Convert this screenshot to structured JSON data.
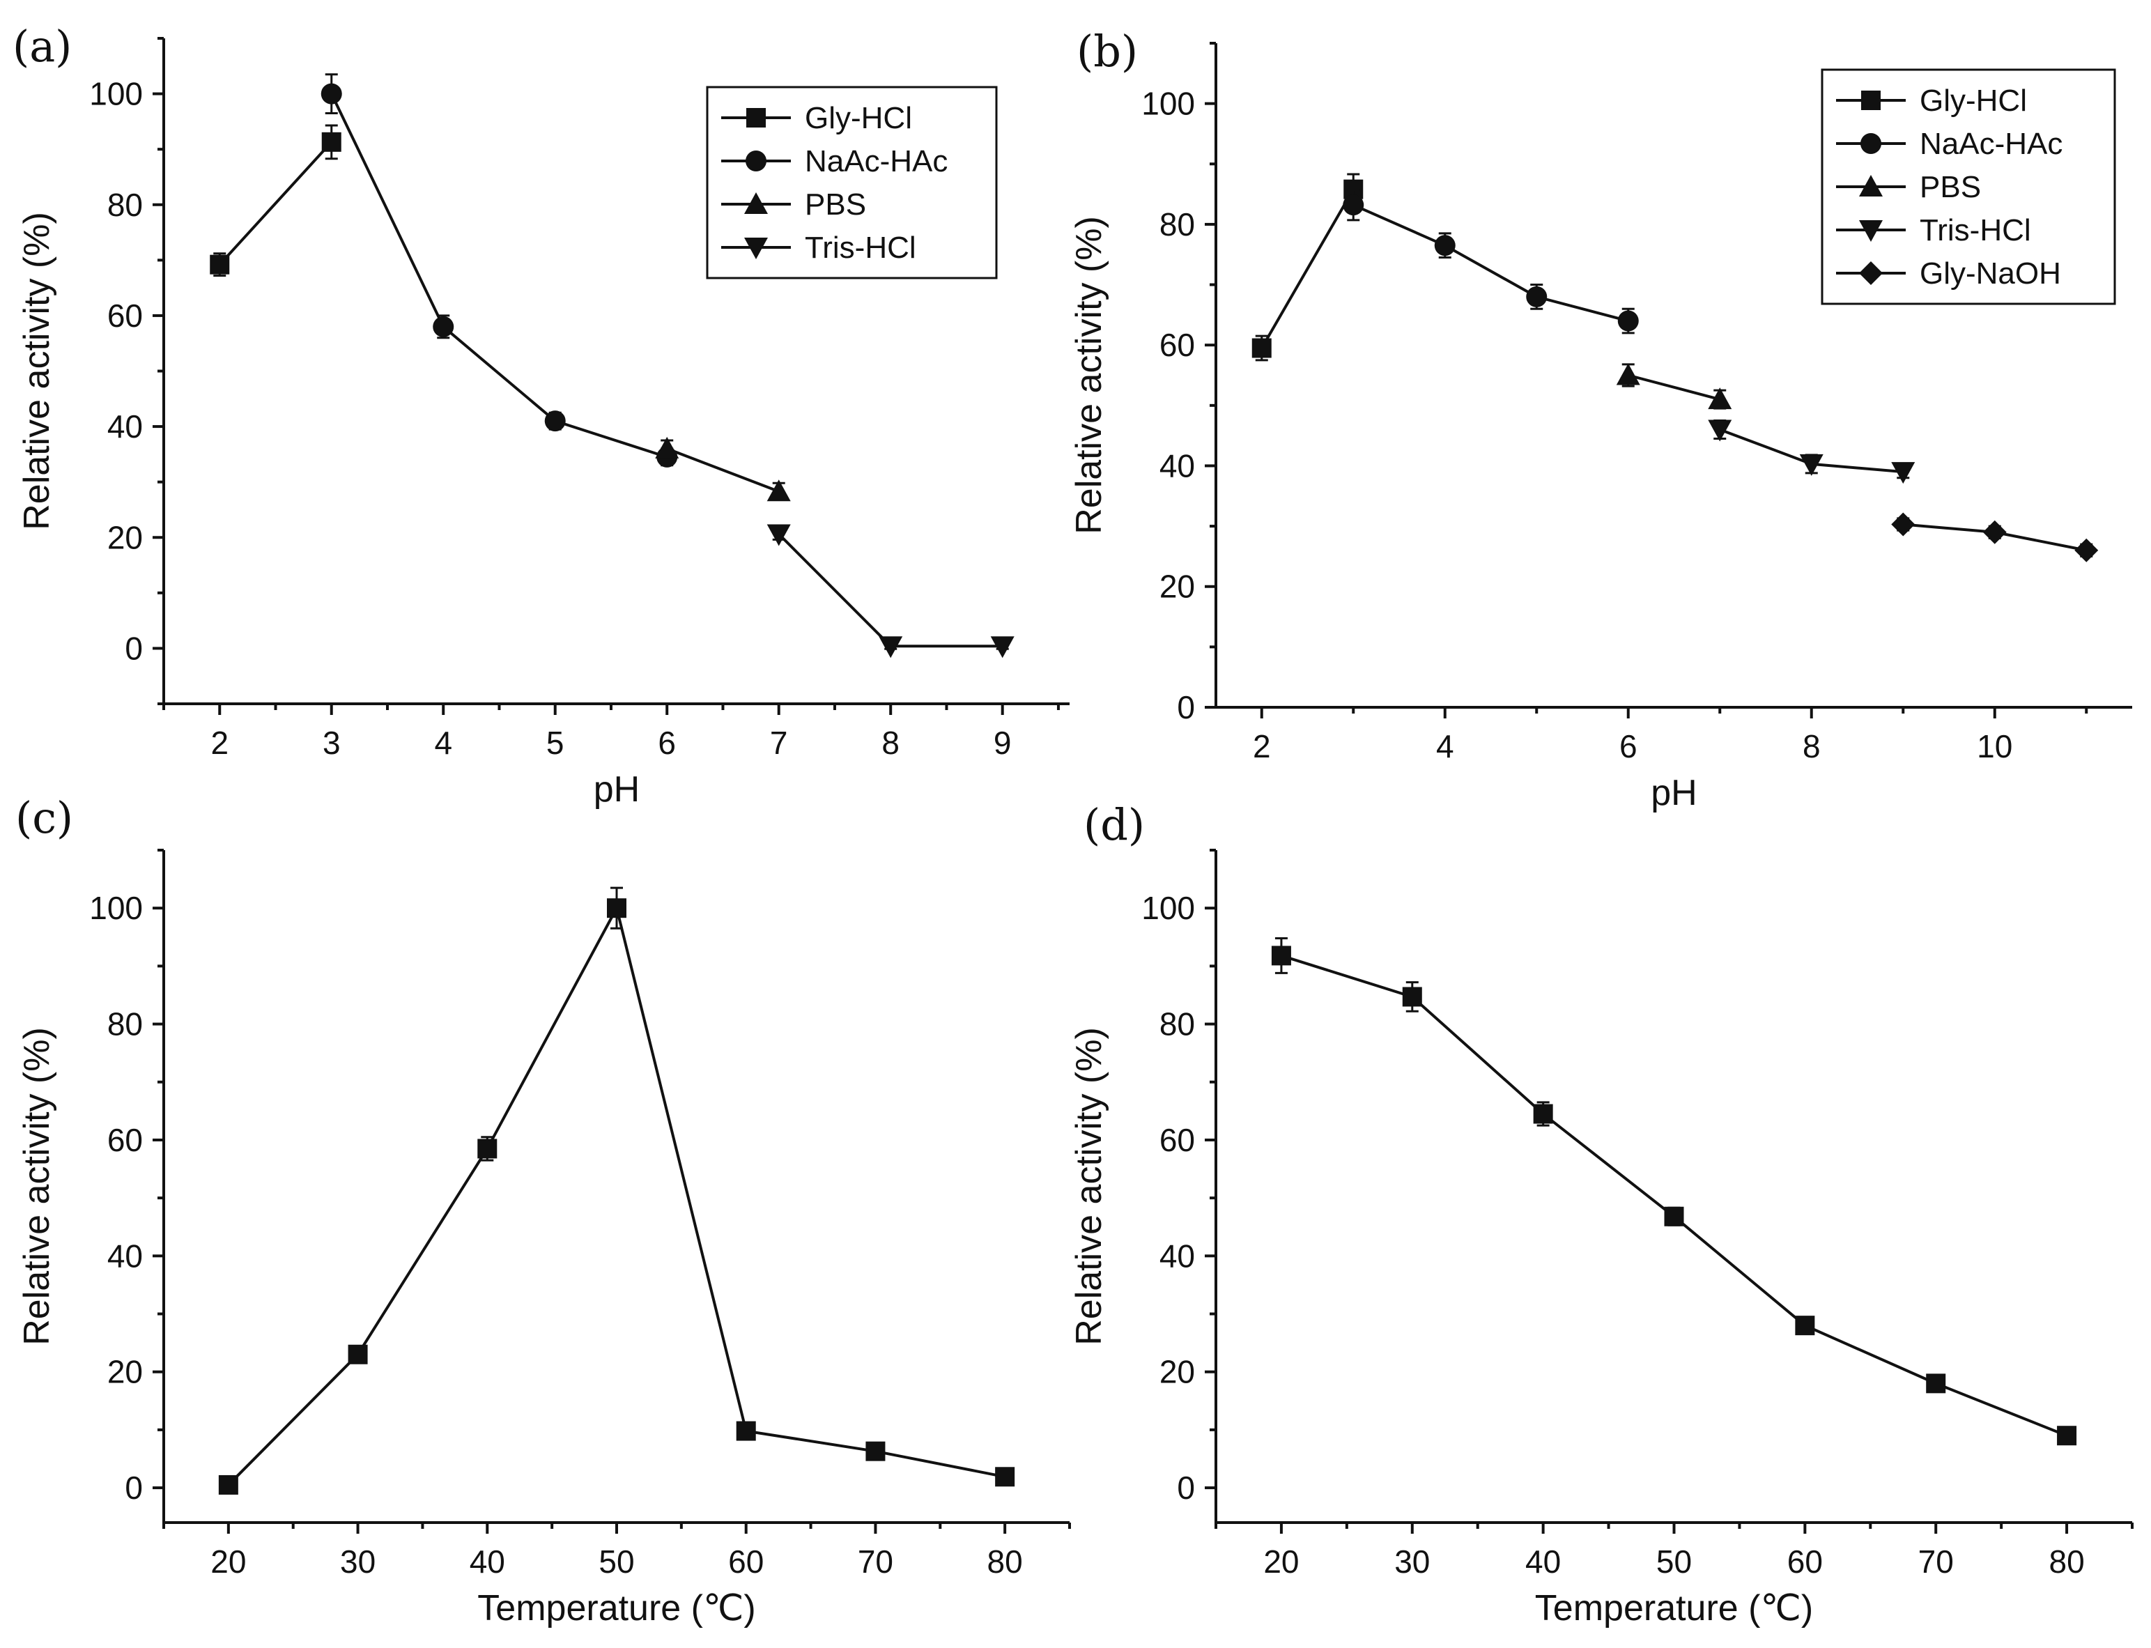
{
  "chart_data": [
    {
      "panel": "(a)",
      "type": "line",
      "xlabel": "pH",
      "ylabel": "Relative activity (%)",
      "xlim": [
        1.5,
        9.6
      ],
      "ylim": [
        -10,
        110
      ],
      "xticks": [
        2,
        3,
        4,
        5,
        6,
        7,
        8,
        9
      ],
      "yticks": [
        0,
        20,
        40,
        60,
        80,
        100
      ],
      "legend_position": "top-right",
      "series": [
        {
          "name": "Gly-HCl",
          "marker": "square",
          "x": [
            2,
            3
          ],
          "values": [
            69.2,
            91.3
          ],
          "err": [
            2,
            3
          ]
        },
        {
          "name": "NaAc-HAc",
          "marker": "circle",
          "x": [
            3,
            4,
            5,
            6
          ],
          "values": [
            100,
            58,
            41,
            34.5
          ],
          "err": [
            3.5,
            2,
            1.5,
            1.5
          ]
        },
        {
          "name": "PBS",
          "marker": "triangle-up",
          "x": [
            6,
            7
          ],
          "values": [
            36,
            28.3
          ],
          "err": [
            1.5,
            1.5
          ]
        },
        {
          "name": "Tris-HCl",
          "marker": "triangle-down",
          "x": [
            7,
            8,
            9
          ],
          "values": [
            20.6,
            0.4,
            0.4
          ],
          "err": [
            1,
            0.5,
            0.5
          ]
        }
      ]
    },
    {
      "panel": "(b)",
      "type": "line",
      "xlabel": "pH",
      "ylabel": "Relative activity (%)",
      "xlim": [
        1.5,
        11.5
      ],
      "ylim": [
        0,
        110
      ],
      "xticks": [
        2,
        4,
        6,
        8,
        10
      ],
      "yticks": [
        0,
        20,
        40,
        60,
        80,
        100
      ],
      "legend_position": "top-right",
      "series": [
        {
          "name": "Gly-HCl",
          "marker": "square",
          "x": [
            2,
            3
          ],
          "values": [
            59.5,
            85.8
          ],
          "err": [
            2,
            2.5
          ]
        },
        {
          "name": "NaAc-HAc",
          "marker": "circle",
          "x": [
            3,
            4,
            5,
            6
          ],
          "values": [
            83.2,
            76.5,
            68,
            64
          ],
          "err": [
            2.5,
            2,
            2,
            2
          ]
        },
        {
          "name": "PBS",
          "marker": "triangle-up",
          "x": [
            6,
            7
          ],
          "values": [
            55,
            51
          ],
          "err": [
            1.8,
            1.5
          ]
        },
        {
          "name": "Tris-HCl",
          "marker": "triangle-down",
          "x": [
            7,
            8,
            9
          ],
          "values": [
            46,
            40.3,
            39
          ],
          "err": [
            1.5,
            1.5,
            1
          ]
        },
        {
          "name": "Gly-NaOH",
          "marker": "diamond",
          "x": [
            9,
            10,
            11
          ],
          "values": [
            30.3,
            29,
            26
          ],
          "err": [
            1,
            1,
            1
          ]
        }
      ]
    },
    {
      "panel": "(c)",
      "type": "line",
      "xlabel": "Temperature (℃)",
      "ylabel": "Relative activity (%)",
      "xlim": [
        15,
        85
      ],
      "ylim": [
        -6,
        110
      ],
      "xticks": [
        20,
        30,
        40,
        50,
        60,
        70,
        80
      ],
      "yticks": [
        0,
        20,
        40,
        60,
        80,
        100
      ],
      "series": [
        {
          "name": "",
          "marker": "square",
          "x": [
            20,
            30,
            40,
            50,
            60,
            70,
            80
          ],
          "values": [
            0.5,
            23,
            58.5,
            100,
            9.8,
            6.3,
            1.9
          ],
          "err": [
            0.5,
            0.8,
            2,
            3.5,
            0.6,
            0.5,
            0.4
          ]
        }
      ]
    },
    {
      "panel": "(d)",
      "type": "line",
      "xlabel": "Temperature (℃)",
      "ylabel": "Relative activity (%)",
      "xlim": [
        15,
        85
      ],
      "ylim": [
        -6,
        110
      ],
      "xticks": [
        20,
        30,
        40,
        50,
        60,
        70,
        80
      ],
      "yticks": [
        0,
        20,
        40,
        60,
        80,
        100
      ],
      "series": [
        {
          "name": "",
          "marker": "square",
          "x": [
            20,
            30,
            40,
            50,
            60,
            70,
            80
          ],
          "values": [
            91.8,
            84.7,
            64.5,
            46.8,
            28,
            18,
            9
          ],
          "err": [
            3,
            2.5,
            2,
            1.5,
            0.6,
            0.6,
            0.5
          ]
        }
      ]
    }
  ]
}
